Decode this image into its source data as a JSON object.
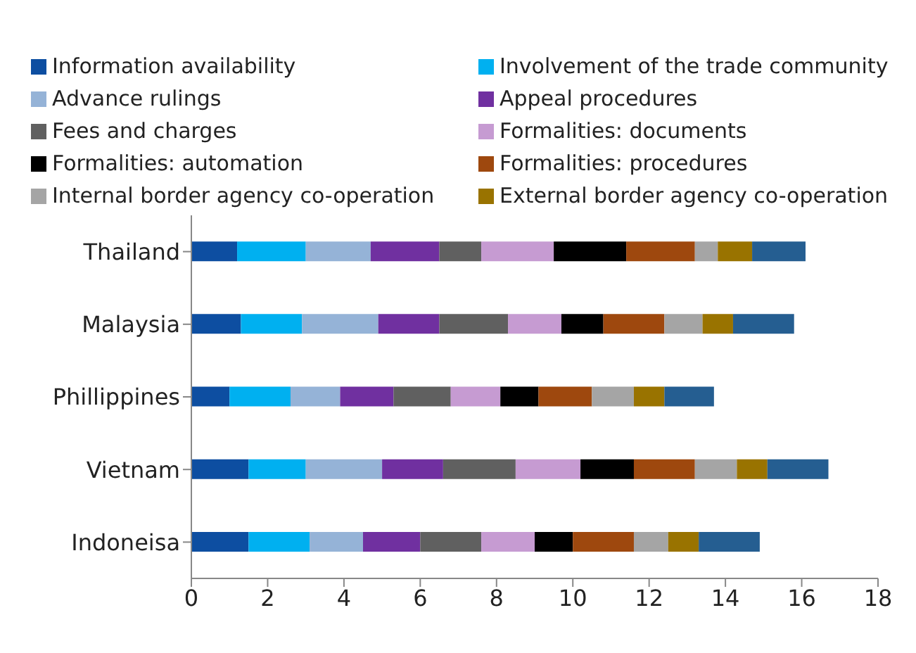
{
  "chart_data": {
    "type": "bar",
    "orientation": "horizontal",
    "stacked": true,
    "categories": [
      "Thailand",
      "Malaysia",
      "Phillippines",
      "Vietnam",
      "Indoneisa"
    ],
    "series": [
      {
        "name": "Information availability",
        "color": "#0d4ea1",
        "values": [
          1.2,
          1.3,
          1.0,
          1.5,
          1.5
        ]
      },
      {
        "name": "Involvement of the trade community",
        "color": "#00b0f0",
        "values": [
          1.8,
          1.6,
          1.6,
          1.5,
          1.6
        ]
      },
      {
        "name": "Advance rulings",
        "color": "#95b3d7",
        "values": [
          1.7,
          2.0,
          1.3,
          2.0,
          1.4
        ]
      },
      {
        "name": "Appeal procedures",
        "color": "#7030a0",
        "values": [
          1.8,
          1.6,
          1.4,
          1.6,
          1.5
        ]
      },
      {
        "name": "Fees and charges",
        "color": "#606060",
        "values": [
          1.1,
          1.8,
          1.5,
          1.9,
          1.6
        ]
      },
      {
        "name": "Formalities: documents",
        "color": "#c69bd2",
        "values": [
          1.9,
          1.4,
          1.3,
          1.7,
          1.4
        ]
      },
      {
        "name": "Formalities: automation",
        "color": "#000000",
        "values": [
          1.9,
          1.1,
          1.0,
          1.4,
          1.0
        ]
      },
      {
        "name": "Formalities: procedures",
        "color": "#9e480e",
        "values": [
          1.8,
          1.6,
          1.4,
          1.6,
          1.6
        ]
      },
      {
        "name": "Internal border agency co-operation",
        "color": "#a5a5a5",
        "values": [
          0.6,
          1.0,
          1.1,
          1.1,
          0.9
        ]
      },
      {
        "name": "External border agency co-operation",
        "color": "#997300",
        "values": [
          0.9,
          0.8,
          0.8,
          0.8,
          0.8
        ]
      },
      {
        "color": "#255e91",
        "values": [
          1.4,
          1.6,
          1.3,
          1.6,
          1.6
        ]
      }
    ],
    "xlim": [
      0,
      18
    ],
    "xticks": [
      0,
      2,
      4,
      6,
      8,
      10,
      12,
      14,
      16,
      18
    ],
    "grid": false,
    "legend": "top"
  }
}
